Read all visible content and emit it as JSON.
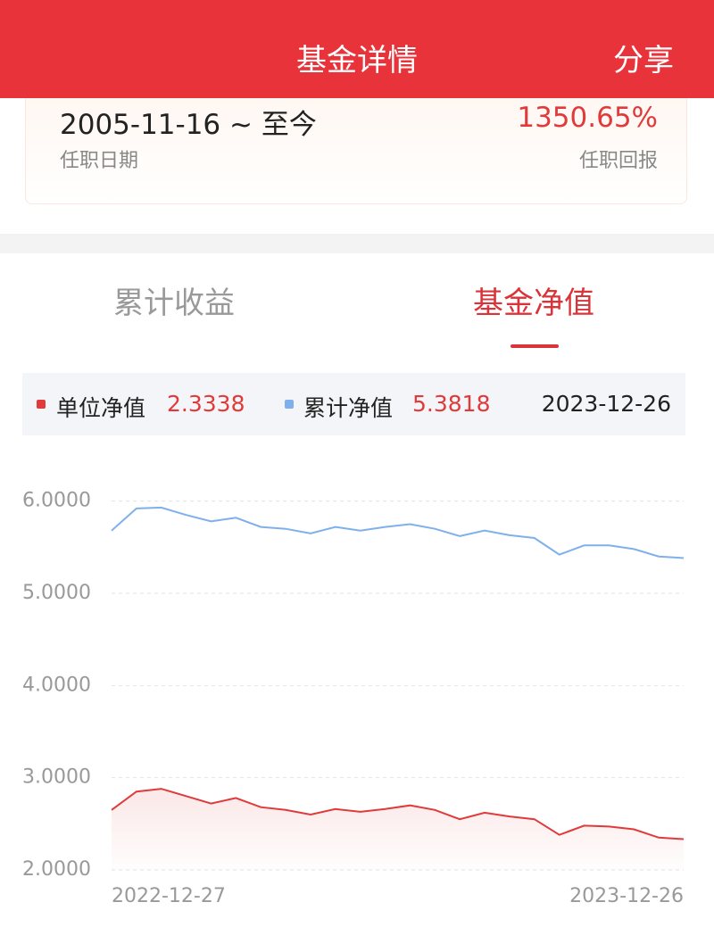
{
  "header": {
    "title": "基金详情",
    "action": "分享"
  },
  "tenure": {
    "period": "2005-11-16 ~ 至今",
    "period_label": "任职日期",
    "return": "1350.65%",
    "return_label": "任职回报"
  },
  "tabs": [
    "累计收益",
    "基金净值"
  ],
  "chart_data": {
    "type": "line",
    "categories": [
      "2022-12-27",
      null,
      null,
      null,
      null,
      null,
      null,
      null,
      null,
      null,
      null,
      null,
      null,
      null,
      null,
      null,
      null,
      null,
      null,
      null,
      null,
      null,
      null,
      "2023-12-26"
    ],
    "series": [
      {
        "name": "单位净值",
        "color": "#e03a3a",
        "values": [
          2.65,
          2.85,
          2.88,
          2.8,
          2.72,
          2.78,
          2.68,
          2.65,
          2.6,
          2.66,
          2.63,
          2.66,
          2.7,
          2.65,
          2.55,
          2.62,
          2.58,
          2.55,
          2.38,
          2.48,
          2.47,
          2.44,
          2.35,
          2.3338
        ]
      },
      {
        "name": "累计净值",
        "color": "#7fb0ec",
        "values": [
          5.68,
          5.92,
          5.93,
          5.85,
          5.78,
          5.82,
          5.72,
          5.7,
          5.65,
          5.72,
          5.68,
          5.72,
          5.75,
          5.7,
          5.62,
          5.68,
          5.63,
          5.6,
          5.42,
          5.52,
          5.52,
          5.48,
          5.4,
          5.3818
        ]
      }
    ],
    "ylim": [
      2,
      6.2
    ],
    "yticks": [
      {
        "value": 2,
        "label": "2.0000"
      },
      {
        "value": 3,
        "label": "3.0000"
      },
      {
        "value": 4,
        "label": "4.0000"
      },
      {
        "value": 5,
        "label": "5.0000"
      },
      {
        "value": 6,
        "label": "6.0000"
      }
    ],
    "grid": true
  }
}
